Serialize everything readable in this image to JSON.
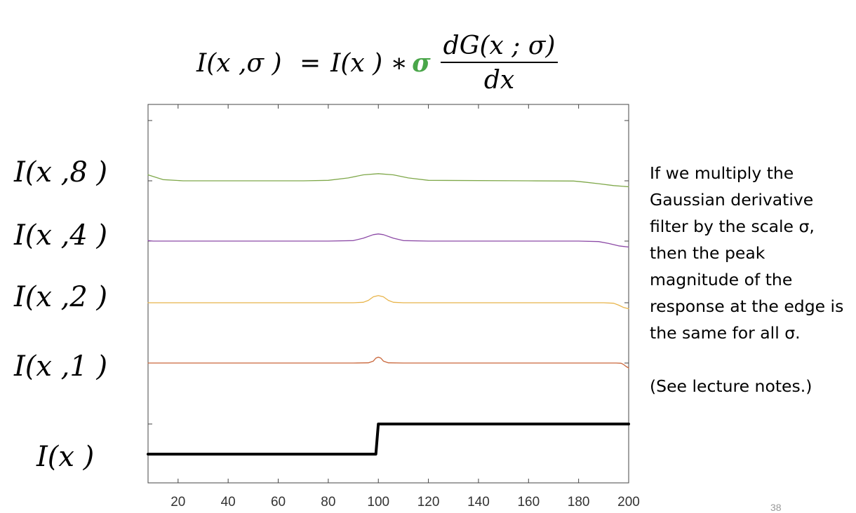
{
  "formula": {
    "lhs": "I(x ,σ ) ",
    "equals": "=",
    "rhs": "I(x ) ∗",
    "sigma": "σ",
    "numerator": "dG(x ; σ)",
    "denominator": "dx"
  },
  "row_labels": [
    {
      "text": "I(x ,8 )",
      "top": 0
    },
    {
      "text": "I(x ,4 )",
      "top": 1
    },
    {
      "text": "I(x ,2 )",
      "top": 2
    },
    {
      "text": "I(x ,1 )",
      "top": 3
    },
    {
      "text": "I(x )",
      "top": 4
    }
  ],
  "side_text": {
    "paragraph1": "If we multiply the Gaussian derivative filter by the scale σ, then the peak magnitude of the response at the edge is the same for all σ.",
    "paragraph2": "(See lecture notes.)"
  },
  "page_number": "38",
  "chart_data": {
    "type": "line",
    "title": "",
    "xlabel": "",
    "ylabel": "",
    "xlim": [
      8,
      200
    ],
    "ylim": [
      -0.5,
      4.5
    ],
    "xticks": [
      20,
      40,
      60,
      80,
      100,
      120,
      140,
      160,
      180,
      200
    ],
    "grid": false,
    "legend": "none",
    "series": [
      {
        "color": "#000000",
        "x": [
          8,
          99,
          100,
          200
        ],
        "y": [
          0,
          0,
          1,
          1
        ]
      },
      {
        "color": "#c9663a",
        "x": [
          8,
          90,
          96,
          98,
          99,
          100,
          101,
          102,
          104,
          110,
          195,
          197,
          198,
          199,
          200
        ],
        "y": [
          1,
          1,
          1.01,
          1.1,
          1.25,
          1.3,
          1.25,
          1.1,
          1.01,
          1,
          1,
          0.99,
          0.92,
          0.82,
          0.75
        ]
      },
      {
        "color": "#e8b44a",
        "x": [
          8,
          90,
          94,
          96,
          98,
          100,
          102,
          104,
          106,
          110,
          190,
          194,
          196,
          198,
          200
        ],
        "y": [
          2,
          2,
          2.02,
          2.1,
          2.25,
          2.3,
          2.25,
          2.1,
          2.02,
          2,
          2,
          1.98,
          1.9,
          1.8,
          1.75
        ]
      },
      {
        "color": "#8c4aa6",
        "x": [
          8,
          9,
          10,
          80,
          90,
          94,
          98,
          100,
          102,
          106,
          110,
          120,
          180,
          188,
          192,
          196,
          200
        ],
        "y": [
          3.02,
          3.01,
          3,
          3,
          3.02,
          3.12,
          3.27,
          3.3,
          3.27,
          3.12,
          3.02,
          3,
          3,
          2.98,
          2.9,
          2.8,
          2.75
        ]
      },
      {
        "color": "#7fa84a",
        "x": [
          8,
          14,
          22,
          70,
          80,
          88,
          94,
          100,
          106,
          112,
          120,
          160,
          178,
          182,
          188,
          194,
          200
        ],
        "y": [
          4.25,
          4.05,
          4,
          4,
          4.02,
          4.12,
          4.25,
          4.3,
          4.25,
          4.12,
          4.02,
          4,
          3.99,
          3.95,
          3.88,
          3.8,
          3.75
        ]
      }
    ]
  }
}
